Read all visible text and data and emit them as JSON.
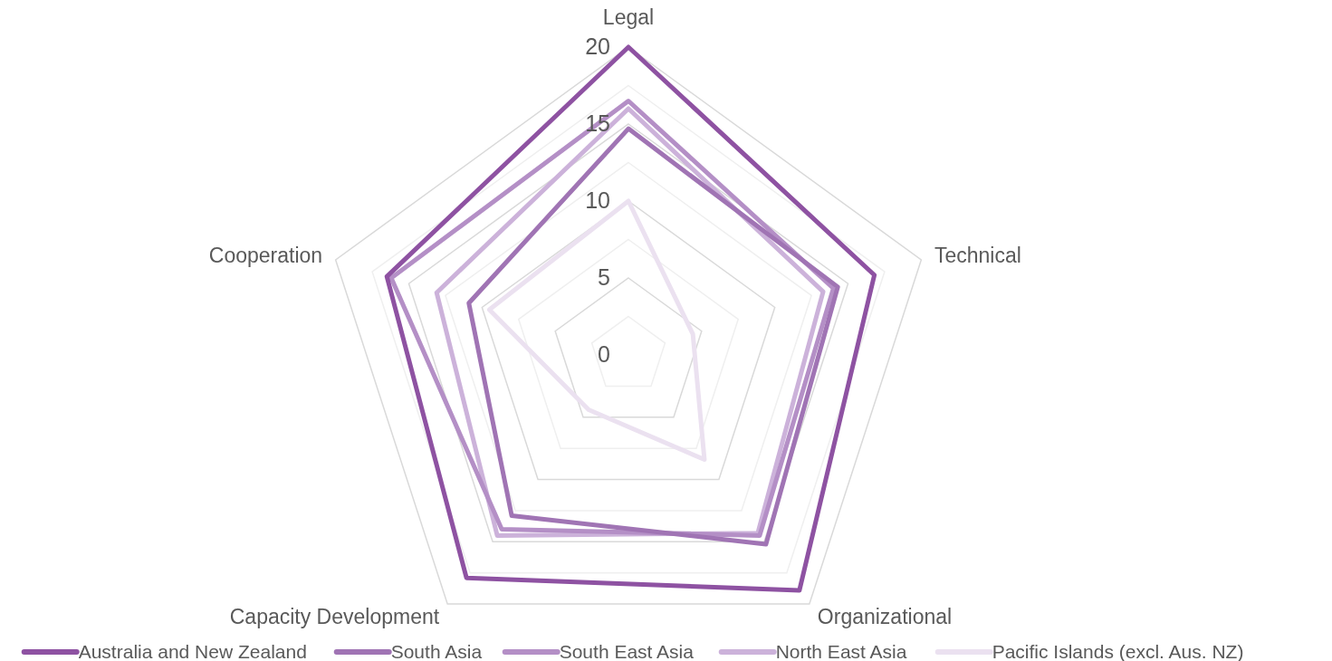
{
  "chart_data": {
    "type": "radar",
    "categories": [
      "Legal",
      "Technical",
      "Organizational",
      "Capacity Development",
      "Cooperation"
    ],
    "ylim": [
      0,
      20
    ],
    "yticks": [
      0,
      5,
      10,
      15,
      20
    ],
    "grid": true,
    "legend": "bottom",
    "line_style": "solid",
    "marker": "none",
    "series": [
      {
        "name": "Australia and New Zealand",
        "color": "#8e52a2",
        "values": [
          20,
          16.8,
          18.9,
          17.9,
          16.5
        ]
      },
      {
        "name": "South Asia",
        "color": "#a074b4",
        "values": [
          14.7,
          14.3,
          15.2,
          12.9,
          10.9
        ]
      },
      {
        "name": "South East Asia",
        "color": "#b48fc6",
        "values": [
          16.5,
          14,
          14.5,
          14,
          16.2
        ]
      },
      {
        "name": "North East Asia",
        "color": "#ccb2da",
        "values": [
          16,
          13.3,
          14.3,
          14.5,
          13.1
        ]
      },
      {
        "name": "Pacific Islands (excl. Aus. NZ)",
        "color": "#ebe1f0",
        "values": [
          10,
          4.4,
          8.4,
          4.4,
          9.5
        ]
      }
    ]
  }
}
